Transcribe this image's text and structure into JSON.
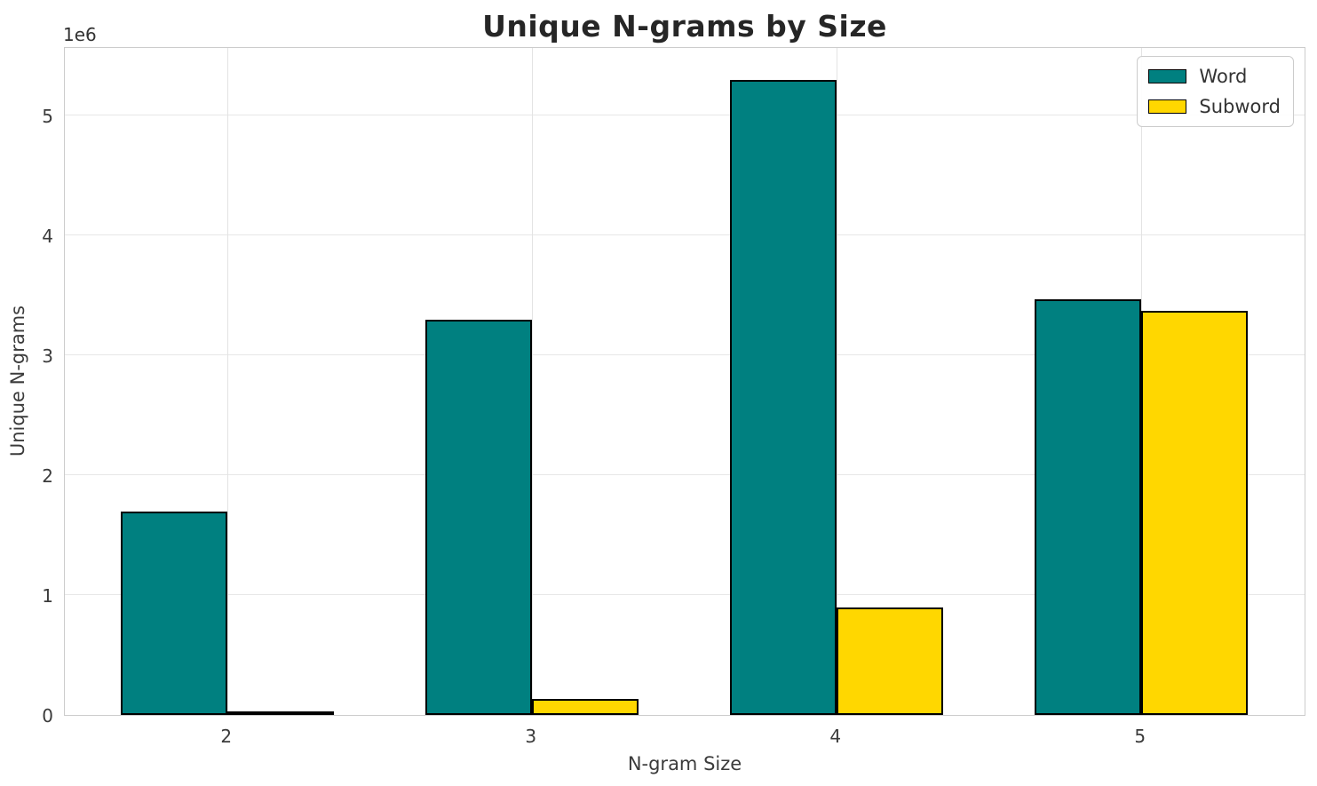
{
  "figure": {
    "background_color": "#ffffff",
    "grid_color": "#e7e7e7",
    "spine_color": "#cccccc",
    "text_color": "#3b3b3b",
    "title_color": "#262626"
  },
  "chart_data": {
    "type": "bar",
    "title": "Unique N-grams by Size",
    "xlabel": "N-gram Size",
    "ylabel": "Unique N-grams",
    "y_offset_text": "1e6",
    "categories": [
      2,
      3,
      4,
      5
    ],
    "series": [
      {
        "name": "Word",
        "color": "#008080",
        "values": [
          1700000,
          3300000,
          5300000,
          3470000
        ]
      },
      {
        "name": "Subword",
        "color": "#FFD700",
        "values": [
          20000,
          130000,
          900000,
          3370000
        ]
      }
    ],
    "bar_edge_color": "#000000",
    "bar_width_units": 0.35,
    "xlim": [
      1.467,
      5.543
    ],
    "ylim": [
      0,
      5580000
    ],
    "yticks": [
      0,
      1000000,
      2000000,
      3000000,
      4000000,
      5000000
    ],
    "ytick_labels": [
      "0",
      "1",
      "2",
      "3",
      "4",
      "5"
    ],
    "xtick_labels": [
      "2",
      "3",
      "4",
      "5"
    ],
    "grid": true,
    "legend_position": "upper right",
    "legend_labels": [
      "Word",
      "Subword"
    ]
  }
}
